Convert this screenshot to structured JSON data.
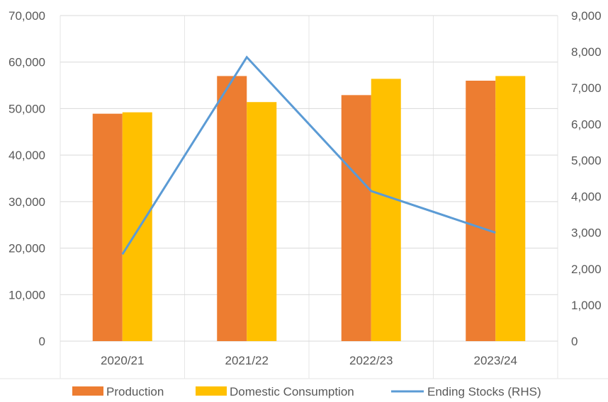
{
  "chart_data": {
    "type": "bar",
    "categories": [
      "2020/21",
      "2021/22",
      "2022/23",
      "2023/24"
    ],
    "series": [
      {
        "name": "Production",
        "type": "bar",
        "axis": "left",
        "color": "#ED7D31",
        "values": [
          48900,
          57000,
          52900,
          56000
        ]
      },
      {
        "name": "Domestic Consumption",
        "type": "bar",
        "axis": "left",
        "color": "#FFC000",
        "values": [
          49200,
          51400,
          56400,
          57000
        ]
      },
      {
        "name": "Ending Stocks (RHS)",
        "type": "line",
        "axis": "right",
        "color": "#5B9BD5",
        "values": [
          2400,
          7850,
          4150,
          3000
        ]
      }
    ],
    "y_left": {
      "min": 0,
      "max": 70000,
      "ticks": [
        "0",
        "10,000",
        "20,000",
        "30,000",
        "40,000",
        "50,000",
        "60,000",
        "70,000"
      ]
    },
    "y_right": {
      "min": 0,
      "max": 9000,
      "ticks": [
        "0",
        "1,000",
        "2,000",
        "3,000",
        "4,000",
        "5,000",
        "6,000",
        "7,000",
        "8,000",
        "9,000"
      ]
    },
    "grid": true,
    "legend_position": "bottom"
  }
}
